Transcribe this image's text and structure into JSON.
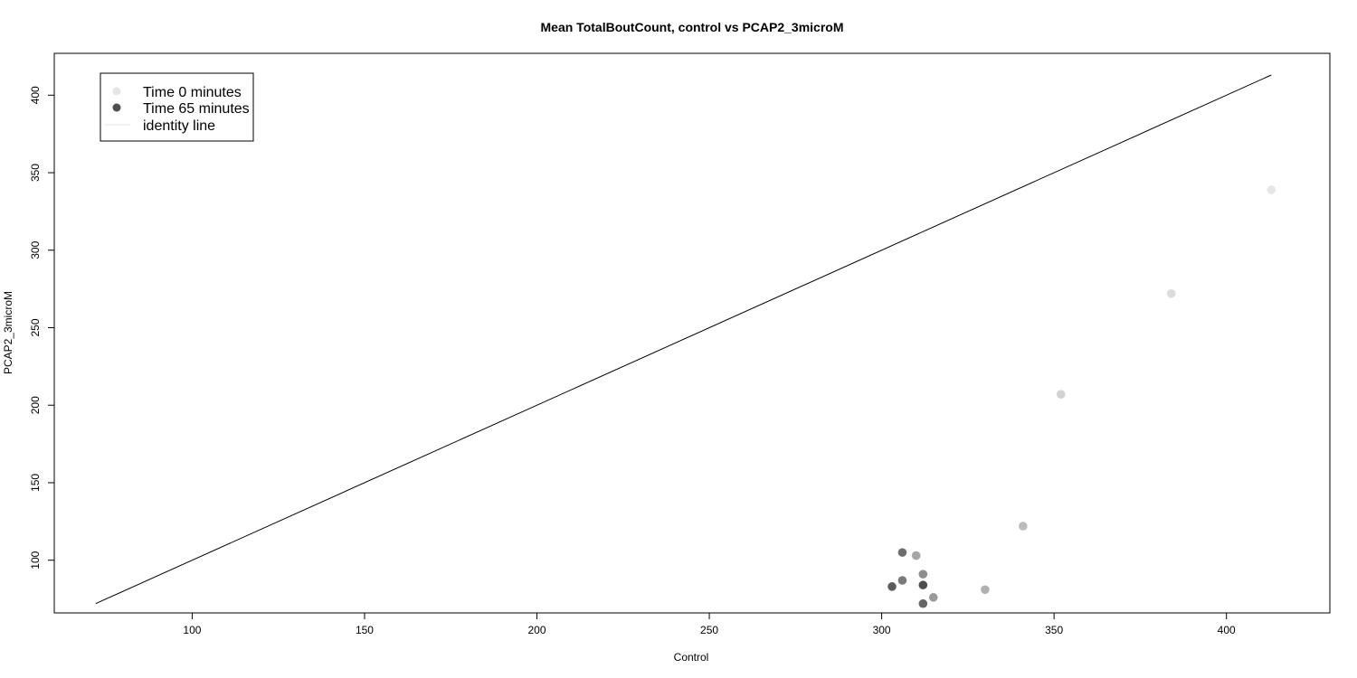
{
  "chart_data": {
    "type": "scatter",
    "title": "Mean TotalBoutCount, control vs PCAP2_3microM",
    "xlabel": "Control",
    "ylabel": "PCAP2_3microM",
    "xlim": [
      60,
      430
    ],
    "ylim": [
      66,
      427
    ],
    "x_ticks": [
      "100",
      "150",
      "200",
      "250",
      "300",
      "350",
      "400"
    ],
    "y_ticks": [
      "100",
      "150",
      "200",
      "250",
      "300",
      "350",
      "400"
    ],
    "grid": false,
    "legend_position": "top-left",
    "legend": [
      {
        "label": "Time 0 minutes",
        "kind": "point",
        "color": "#e6e6e6"
      },
      {
        "label": "Time 65 minutes",
        "kind": "point",
        "color": "#4d4d4d"
      },
      {
        "label": "identity line",
        "kind": "line",
        "color": "#e6e6e6"
      }
    ],
    "identity_line": {
      "x": [
        72,
        413
      ],
      "y": [
        72,
        413
      ],
      "color": "#000000"
    },
    "points": [
      {
        "x": 413,
        "y": 339,
        "color": "#e6e6e6"
      },
      {
        "x": 384,
        "y": 272,
        "color": "#dcdcdc"
      },
      {
        "x": 352,
        "y": 207,
        "color": "#d2d2d2"
      },
      {
        "x": 341,
        "y": 122,
        "color": "#bcbcbc"
      },
      {
        "x": 330,
        "y": 81,
        "color": "#b0b0b0"
      },
      {
        "x": 310,
        "y": 103,
        "color": "#a5a5a5"
      },
      {
        "x": 315,
        "y": 76,
        "color": "#9a9a9a"
      },
      {
        "x": 312,
        "y": 91,
        "color": "#8e8e8e"
      },
      {
        "x": 306,
        "y": 87,
        "color": "#7a7a7a"
      },
      {
        "x": 306,
        "y": 105,
        "color": "#6e6e6e"
      },
      {
        "x": 312,
        "y": 72,
        "color": "#666666"
      },
      {
        "x": 303,
        "y": 83,
        "color": "#5c5c5c"
      },
      {
        "x": 312,
        "y": 84,
        "color": "#4d4d4d"
      }
    ]
  }
}
